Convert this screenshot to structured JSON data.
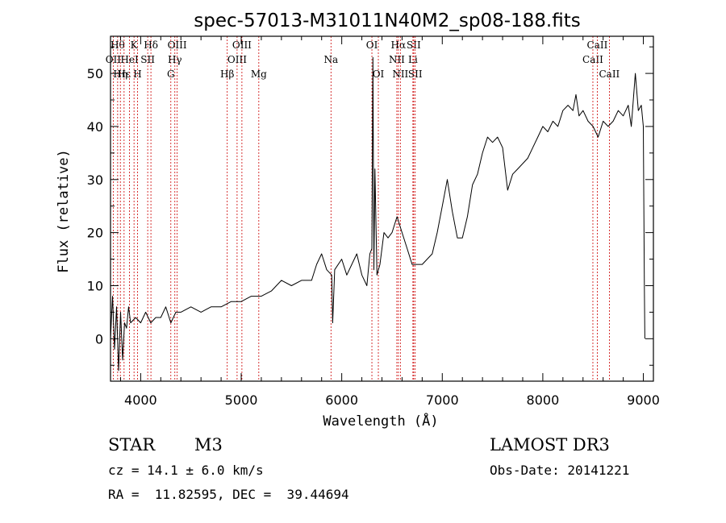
{
  "chart_data": {
    "type": "line",
    "title": "spec-57013-M31011N40M2_sp08-188.fits",
    "xlabel": "Wavelength (Å)",
    "ylabel": "Flux (relative)",
    "xlim": [
      3700,
      9100
    ],
    "ylim": [
      -8,
      57
    ],
    "xticks": [
      4000,
      5000,
      6000,
      7000,
      8000,
      9000
    ],
    "yticks": [
      0,
      10,
      20,
      30,
      40,
      50
    ],
    "series": [
      {
        "name": "spectrum",
        "points": [
          [
            3700,
            0
          ],
          [
            3720,
            8
          ],
          [
            3740,
            -2
          ],
          [
            3760,
            6
          ],
          [
            3780,
            -6
          ],
          [
            3800,
            5
          ],
          [
            3820,
            -4
          ],
          [
            3840,
            3
          ],
          [
            3860,
            2
          ],
          [
            3880,
            6
          ],
          [
            3900,
            3
          ],
          [
            3950,
            4
          ],
          [
            4000,
            3
          ],
          [
            4050,
            5
          ],
          [
            4100,
            3
          ],
          [
            4150,
            4
          ],
          [
            4200,
            4
          ],
          [
            4250,
            6
          ],
          [
            4300,
            3
          ],
          [
            4350,
            5
          ],
          [
            4400,
            5
          ],
          [
            4500,
            6
          ],
          [
            4600,
            5
          ],
          [
            4700,
            6
          ],
          [
            4800,
            6
          ],
          [
            4900,
            7
          ],
          [
            5000,
            7
          ],
          [
            5100,
            8
          ],
          [
            5200,
            8
          ],
          [
            5300,
            9
          ],
          [
            5400,
            11
          ],
          [
            5500,
            10
          ],
          [
            5600,
            11
          ],
          [
            5700,
            11
          ],
          [
            5750,
            14
          ],
          [
            5800,
            16
          ],
          [
            5850,
            13
          ],
          [
            5900,
            12
          ],
          [
            5910,
            3
          ],
          [
            5930,
            13
          ],
          [
            6000,
            15
          ],
          [
            6050,
            12
          ],
          [
            6100,
            14
          ],
          [
            6150,
            16
          ],
          [
            6200,
            12
          ],
          [
            6250,
            10
          ],
          [
            6280,
            16
          ],
          [
            6300,
            17
          ],
          [
            6310,
            53
          ],
          [
            6320,
            13
          ],
          [
            6330,
            32
          ],
          [
            6350,
            12
          ],
          [
            6380,
            14
          ],
          [
            6420,
            20
          ],
          [
            6460,
            19
          ],
          [
            6500,
            20
          ],
          [
            6550,
            23
          ],
          [
            6600,
            20
          ],
          [
            6650,
            17
          ],
          [
            6700,
            14
          ],
          [
            6800,
            14
          ],
          [
            6900,
            16
          ],
          [
            6950,
            20
          ],
          [
            7000,
            25
          ],
          [
            7050,
            30
          ],
          [
            7100,
            24
          ],
          [
            7150,
            19
          ],
          [
            7200,
            19
          ],
          [
            7250,
            23
          ],
          [
            7300,
            29
          ],
          [
            7350,
            31
          ],
          [
            7400,
            35
          ],
          [
            7450,
            38
          ],
          [
            7500,
            37
          ],
          [
            7550,
            38
          ],
          [
            7600,
            36
          ],
          [
            7650,
            28
          ],
          [
            7700,
            31
          ],
          [
            7750,
            32
          ],
          [
            7800,
            33
          ],
          [
            7850,
            34
          ],
          [
            7900,
            36
          ],
          [
            7950,
            38
          ],
          [
            8000,
            40
          ],
          [
            8050,
            39
          ],
          [
            8100,
            41
          ],
          [
            8150,
            40
          ],
          [
            8200,
            43
          ],
          [
            8250,
            44
          ],
          [
            8300,
            43
          ],
          [
            8330,
            46
          ],
          [
            8360,
            42
          ],
          [
            8400,
            43
          ],
          [
            8450,
            41
          ],
          [
            8500,
            40
          ],
          [
            8550,
            38
          ],
          [
            8600,
            41
          ],
          [
            8650,
            40
          ],
          [
            8700,
            41
          ],
          [
            8750,
            43
          ],
          [
            8800,
            42
          ],
          [
            8850,
            44
          ],
          [
            8880,
            40
          ],
          [
            8920,
            50
          ],
          [
            8950,
            43
          ],
          [
            8980,
            44
          ],
          [
            9000,
            40
          ],
          [
            9010,
            10
          ],
          [
            9015,
            0
          ]
        ]
      }
    ],
    "lines": [
      {
        "wl": 3771,
        "labels": [
          "Hθ"
        ],
        "row": 0
      },
      {
        "wl": 3727,
        "labels": [
          "OII"
        ],
        "row": 1
      },
      {
        "wl": 3798,
        "labels": [
          "Hη"
        ],
        "row": 2
      },
      {
        "wl": 3835,
        "labels": [
          "Hε"
        ],
        "row": 2
      },
      {
        "wl": 3889,
        "labels": [
          "HeI"
        ],
        "row": 1
      },
      {
        "wl": 3934,
        "labels": [
          "K"
        ],
        "row": 0
      },
      {
        "wl": 3969,
        "labels": [
          "H"
        ],
        "row": 2
      },
      {
        "wl": 4070,
        "labels": [
          "SII"
        ],
        "row": 1
      },
      {
        "wl": 4102,
        "labels": [
          "Hδ"
        ],
        "row": 0
      },
      {
        "wl": 4300,
        "labels": [
          "G"
        ],
        "row": 2
      },
      {
        "wl": 4340,
        "labels": [
          "Hγ"
        ],
        "row": 1
      },
      {
        "wl": 4363,
        "labels": [
          "OIII"
        ],
        "row": 0
      },
      {
        "wl": 4861,
        "labels": [
          "Hβ"
        ],
        "row": 2
      },
      {
        "wl": 4959,
        "labels": [
          "OIII"
        ],
        "row": 1
      },
      {
        "wl": 5007,
        "labels": [
          "OIII"
        ],
        "row": 0
      },
      {
        "wl": 5175,
        "labels": [
          "Mg"
        ],
        "row": 2
      },
      {
        "wl": 5893,
        "labels": [
          "Na"
        ],
        "row": 1
      },
      {
        "wl": 6300,
        "labels": [
          "OI"
        ],
        "row": 0
      },
      {
        "wl": 6364,
        "labels": [
          "OI"
        ],
        "row": 2
      },
      {
        "wl": 6548,
        "labels": [
          "NII"
        ],
        "row": 1
      },
      {
        "wl": 6563,
        "labels": [
          "Hα"
        ],
        "row": 0
      },
      {
        "wl": 6583,
        "labels": [
          "NII"
        ],
        "row": 2
      },
      {
        "wl": 6708,
        "labels": [
          "Li"
        ],
        "row": 1
      },
      {
        "wl": 6716,
        "labels": [
          "SII"
        ],
        "row": 0
      },
      {
        "wl": 6731,
        "labels": [
          "SII"
        ],
        "row": 2
      },
      {
        "wl": 8498,
        "labels": [
          "CaII"
        ],
        "row": 1
      },
      {
        "wl": 8542,
        "labels": [
          "CaII"
        ],
        "row": 0
      },
      {
        "wl": 8662,
        "labels": [
          "CaII"
        ],
        "row": 2
      }
    ]
  },
  "info": {
    "object_type": "STAR",
    "subclass": "M3",
    "survey": "LAMOST DR3",
    "cz": "cz = 14.1 ± 6.0 km/s",
    "obs_date": "Obs-Date: 20141221",
    "radec": "RA =  11.82595, DEC =  39.44694"
  },
  "colors": {
    "line_marker": "#cc0000",
    "spectrum": "#000000",
    "axes": "#000000"
  }
}
